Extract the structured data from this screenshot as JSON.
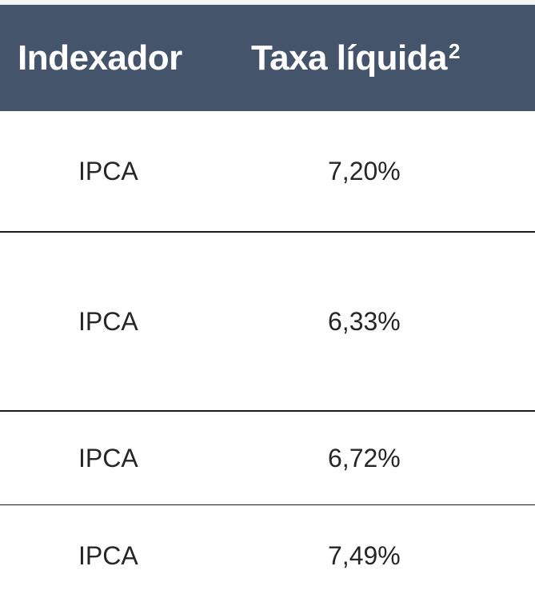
{
  "table": {
    "headers": {
      "col1": "Indexador",
      "col2": "Taxa líquida",
      "col2_superscript": "2"
    },
    "rows": [
      {
        "indexador": "IPCA",
        "taxa": "7,20%"
      },
      {
        "indexador": "IPCA",
        "taxa": "6,33%"
      },
      {
        "indexador": "IPCA",
        "taxa": "6,72%"
      },
      {
        "indexador": "IPCA",
        "taxa": "7,49%"
      }
    ]
  },
  "colors": {
    "header_background": "#44546b",
    "header_text": "#ffffff",
    "body_text": "#262626",
    "divider": "#1a1a1a"
  }
}
